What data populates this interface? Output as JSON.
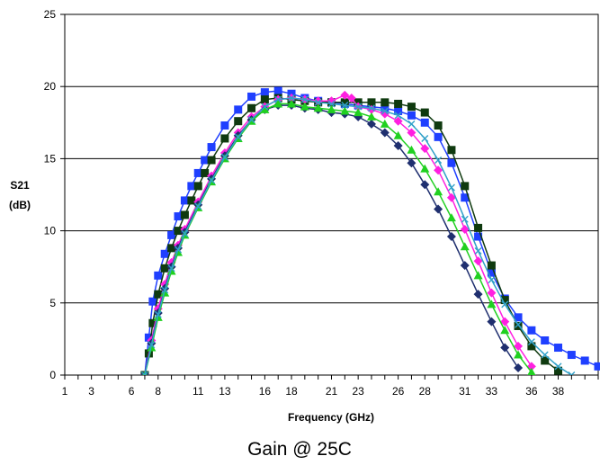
{
  "chart_data": {
    "type": "line",
    "title": "",
    "caption": "Gain @ 25C",
    "xlabel": "Frequency (GHz)",
    "ylabel": "S21",
    "ylabel_unit": "(dB)",
    "xlim": [
      1,
      41
    ],
    "ylim": [
      0,
      25
    ],
    "x_ticks": [
      1,
      3,
      6,
      8,
      11,
      13,
      16,
      18,
      21,
      23,
      26,
      28,
      31,
      33,
      36,
      38
    ],
    "y_ticks": [
      0,
      5,
      10,
      15,
      20,
      25
    ],
    "grid": "horizontal",
    "legend": "none",
    "series": [
      {
        "color": "#1f3fff",
        "marker": "square",
        "x": [
          7,
          7.3,
          7.6,
          8,
          8.5,
          9,
          9.5,
          10,
          10.5,
          11,
          11.5,
          12,
          13,
          14,
          15,
          16,
          17,
          18,
          19,
          20,
          21,
          22,
          23,
          24,
          25,
          26,
          27,
          28,
          29,
          30,
          31,
          32,
          33,
          34,
          35,
          36,
          37,
          38,
          39,
          40,
          41
        ],
        "y": [
          0,
          2.6,
          5.1,
          6.9,
          8.4,
          9.7,
          11,
          12.1,
          13.1,
          14,
          14.9,
          15.8,
          17.3,
          18.4,
          19.3,
          19.6,
          19.7,
          19.5,
          19.2,
          19,
          18.9,
          18.8,
          18.7,
          18.6,
          18.5,
          18.3,
          18,
          17.5,
          16.5,
          14.7,
          12.3,
          9.6,
          7.1,
          5.3,
          4,
          3.1,
          2.4,
          1.9,
          1.4,
          1,
          0.6
        ]
      },
      {
        "color": "#0f3a0f",
        "marker": "square",
        "x": [
          7,
          7.3,
          7.6,
          8,
          8.5,
          9,
          9.5,
          10,
          10.5,
          11,
          11.5,
          12,
          13,
          14,
          15,
          16,
          17,
          18,
          19,
          20,
          21,
          22,
          23,
          24,
          25,
          26,
          27,
          28,
          29,
          30,
          31,
          32,
          33,
          34,
          35,
          36,
          37,
          38
        ],
        "y": [
          0,
          1.5,
          3.6,
          5.6,
          7.4,
          8.8,
          10,
          11.1,
          12.1,
          13.1,
          14,
          14.9,
          16.4,
          17.6,
          18.5,
          19.1,
          19.2,
          19.1,
          19,
          18.9,
          18.9,
          18.9,
          18.9,
          18.9,
          18.9,
          18.8,
          18.6,
          18.2,
          17.3,
          15.6,
          13.1,
          10.2,
          7.6,
          5.2,
          3.4,
          2,
          1,
          0.3
        ]
      },
      {
        "color": "#ff20e0",
        "marker": "diamond",
        "x": [
          7,
          7.5,
          8,
          8.5,
          9,
          9.5,
          10,
          11,
          12,
          13,
          14,
          15,
          16,
          17,
          18,
          19,
          20,
          21,
          22,
          22.5,
          23,
          24,
          25,
          26,
          27,
          28,
          29,
          30,
          31,
          32,
          33,
          34,
          35,
          36
        ],
        "y": [
          0,
          2.4,
          4.6,
          6.3,
          7.8,
          9,
          10.1,
          12,
          13.8,
          15.4,
          16.8,
          17.9,
          18.6,
          19.1,
          19.2,
          19.1,
          19,
          19,
          19.4,
          19.2,
          18.6,
          18.4,
          18.1,
          17.6,
          16.8,
          15.7,
          14.2,
          12.3,
          10.1,
          7.9,
          5.7,
          3.7,
          2,
          0.6
        ]
      },
      {
        "color": "#1f2f6f",
        "marker": "diamond",
        "x": [
          7,
          7.5,
          8,
          8.5,
          9,
          9.5,
          10,
          11,
          12,
          13,
          14,
          15,
          16,
          17,
          18,
          19,
          20,
          21,
          22,
          23,
          24,
          25,
          26,
          27,
          28,
          29,
          30,
          31,
          32,
          33,
          34,
          35
        ],
        "y": [
          0,
          2.2,
          4.3,
          6,
          7.5,
          8.8,
          9.9,
          11.8,
          13.6,
          15.2,
          16.6,
          17.7,
          18.4,
          18.7,
          18.7,
          18.5,
          18.4,
          18.2,
          18.1,
          17.9,
          17.4,
          16.8,
          15.9,
          14.7,
          13.2,
          11.5,
          9.6,
          7.6,
          5.6,
          3.7,
          1.9,
          0.5
        ]
      },
      {
        "color": "#20d020",
        "marker": "triangle",
        "x": [
          7,
          7.5,
          8,
          8.5,
          9,
          9.5,
          10,
          11,
          12,
          13,
          14,
          15,
          16,
          17,
          18,
          19,
          20,
          21,
          22,
          23,
          24,
          25,
          26,
          27,
          28,
          29,
          30,
          31,
          32,
          33,
          34,
          35,
          36
        ],
        "y": [
          0,
          1.9,
          4,
          5.7,
          7.2,
          8.5,
          9.7,
          11.6,
          13.4,
          15,
          16.4,
          17.6,
          18.4,
          18.8,
          18.8,
          18.6,
          18.5,
          18.4,
          18.3,
          18.2,
          17.9,
          17.4,
          16.6,
          15.6,
          14.3,
          12.7,
          10.9,
          8.9,
          6.9,
          4.9,
          3.1,
          1.4,
          0.2
        ]
      },
      {
        "color": "#30a0c8",
        "marker": "x",
        "x": [
          7,
          7.5,
          8,
          8.5,
          9,
          9.5,
          10,
          11,
          12,
          13,
          14,
          15,
          16,
          17,
          18,
          19,
          20,
          21,
          22,
          23,
          24,
          25,
          26,
          27,
          28,
          29,
          30,
          31,
          32,
          33,
          34,
          35,
          36,
          37,
          38,
          39
        ],
        "y": [
          0,
          2.1,
          4.2,
          5.9,
          7.4,
          8.7,
          9.8,
          11.7,
          13.5,
          15.1,
          16.5,
          17.7,
          18.6,
          19.1,
          19.2,
          19.1,
          18.9,
          18.8,
          18.7,
          18.6,
          18.5,
          18.3,
          18,
          17.4,
          16.4,
          14.9,
          13,
          10.8,
          8.6,
          6.6,
          4.9,
          3.5,
          2.3,
          1.4,
          0.6,
          0
        ]
      }
    ]
  }
}
